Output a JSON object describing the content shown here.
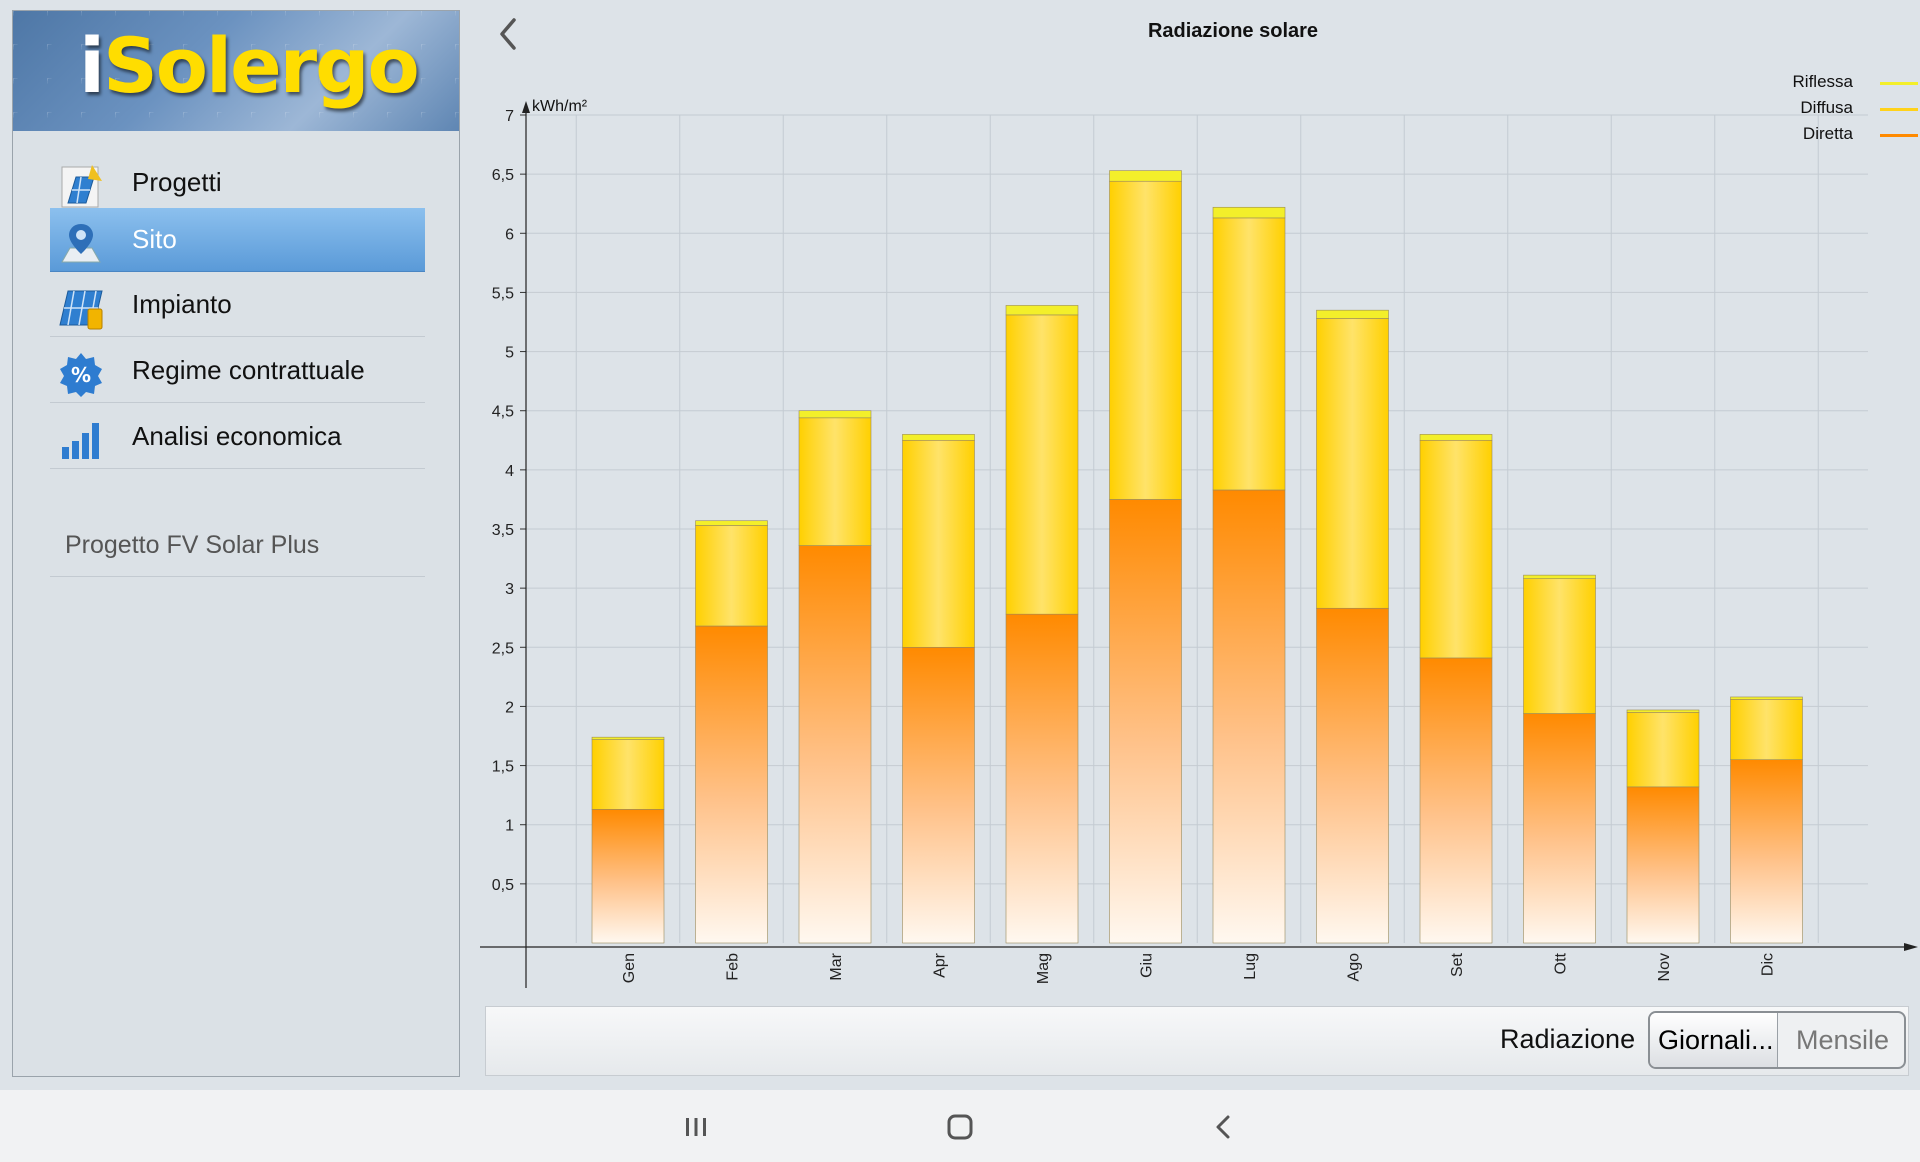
{
  "sidebar": {
    "logo_text_i": "i",
    "logo_text_rest": "Solergo",
    "items": [
      {
        "label": "Progetti",
        "icon": "project-icon",
        "active": false
      },
      {
        "label": "Sito",
        "icon": "location-pin-icon",
        "active": true
      },
      {
        "label": "Impianto",
        "icon": "solar-panel-icon",
        "active": false
      },
      {
        "label": "Regime contrattuale",
        "icon": "percent-badge-icon",
        "active": false
      },
      {
        "label": "Analisi economica",
        "icon": "bar-chart-icon",
        "active": false
      }
    ],
    "project_name": "Progetto FV Solar Plus",
    "active_color": "#5a9ad8"
  },
  "header": {
    "title": "Radiazione solare"
  },
  "chart_data": {
    "type": "bar",
    "stacked": true,
    "title": "Radiazione solare",
    "ylabel": "kWh/m²",
    "xlabel": "",
    "ylim": [
      0,
      7
    ],
    "y_ticks": [
      "0,5",
      "1",
      "1,5",
      "2",
      "2,5",
      "3",
      "3,5",
      "4",
      "4,5",
      "5",
      "5,5",
      "6",
      "6,5",
      "7"
    ],
    "categories": [
      "Gen",
      "Feb",
      "Mar",
      "Apr",
      "Mag",
      "Giu",
      "Lug",
      "Ago",
      "Set",
      "Ott",
      "Nov",
      "Dic"
    ],
    "series": [
      {
        "name": "Diretta",
        "color": "#ff8a00",
        "values": [
          1.13,
          2.68,
          3.36,
          2.5,
          2.78,
          3.75,
          3.83,
          2.83,
          2.41,
          1.94,
          1.32,
          1.55
        ]
      },
      {
        "name": "Diffusa",
        "color": "#ffd21a",
        "values": [
          0.59,
          0.85,
          1.08,
          1.75,
          2.53,
          2.69,
          2.3,
          2.45,
          1.84,
          1.14,
          0.63,
          0.51
        ]
      },
      {
        "name": "Riflessa",
        "color": "#f3ef2a",
        "values": [
          0.02,
          0.04,
          0.06,
          0.05,
          0.08,
          0.09,
          0.09,
          0.07,
          0.05,
          0.03,
          0.02,
          0.02
        ]
      }
    ],
    "legend_position": "top-right",
    "grid": true
  },
  "controls": {
    "radiation_label": "Radiazione",
    "segments": [
      {
        "label": "Giornali...",
        "selected": true
      },
      {
        "label": "Mensile",
        "selected": false
      }
    ]
  },
  "navbar": {
    "buttons": [
      "recent-apps-icon",
      "home-icon",
      "back-icon"
    ]
  }
}
